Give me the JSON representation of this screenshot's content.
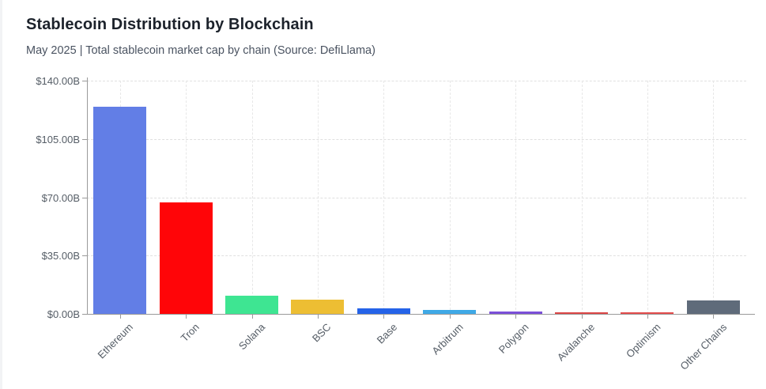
{
  "header": {
    "title": "Stablecoin Distribution by Blockchain",
    "subtitle": "May 2025 | Total stablecoin market cap by chain (Source: DefiLlama)"
  },
  "chart_data": {
    "type": "bar",
    "title": "Stablecoin Distribution by Blockchain",
    "subtitle": "May 2025 | Total stablecoin market cap by chain (Source: DefiLlama)",
    "categories": [
      "Ethereum",
      "Tron",
      "Solana",
      "BSC",
      "Base",
      "Arbitrum",
      "Polygon",
      "Avalanche",
      "Optimism",
      "Other Chains"
    ],
    "values": [
      124.5,
      67.0,
      11.0,
      8.6,
      3.1,
      2.2,
      1.5,
      1.1,
      0.8,
      8.2
    ],
    "unit": "USD billions",
    "bar_colors": [
      "#627ee6",
      "#ff0508",
      "#3ee592",
      "#edbe33",
      "#2563e8",
      "#3fa9e6",
      "#7b4fd8",
      "#dc4646",
      "#e34c4c",
      "#5f6b7a"
    ],
    "xlabel": "",
    "ylabel": "",
    "ylim": [
      0,
      140
    ],
    "yticks": [
      {
        "value": 0,
        "label": "$0.00B"
      },
      {
        "value": 35,
        "label": "$35.00B"
      },
      {
        "value": 70,
        "label": "$70.00B"
      },
      {
        "value": 105,
        "label": "$105.00B"
      },
      {
        "value": 140,
        "label": "$140.00B"
      }
    ],
    "grid": true,
    "legend": false,
    "x_tick_rotation": 45
  },
  "colors": {
    "background": "#ffffff",
    "axis": "#9a9a9a",
    "grid": "#e0e0e0",
    "title_text": "#1c222b",
    "subtitle_text": "#4a5361",
    "tick_text": "#555d66"
  }
}
